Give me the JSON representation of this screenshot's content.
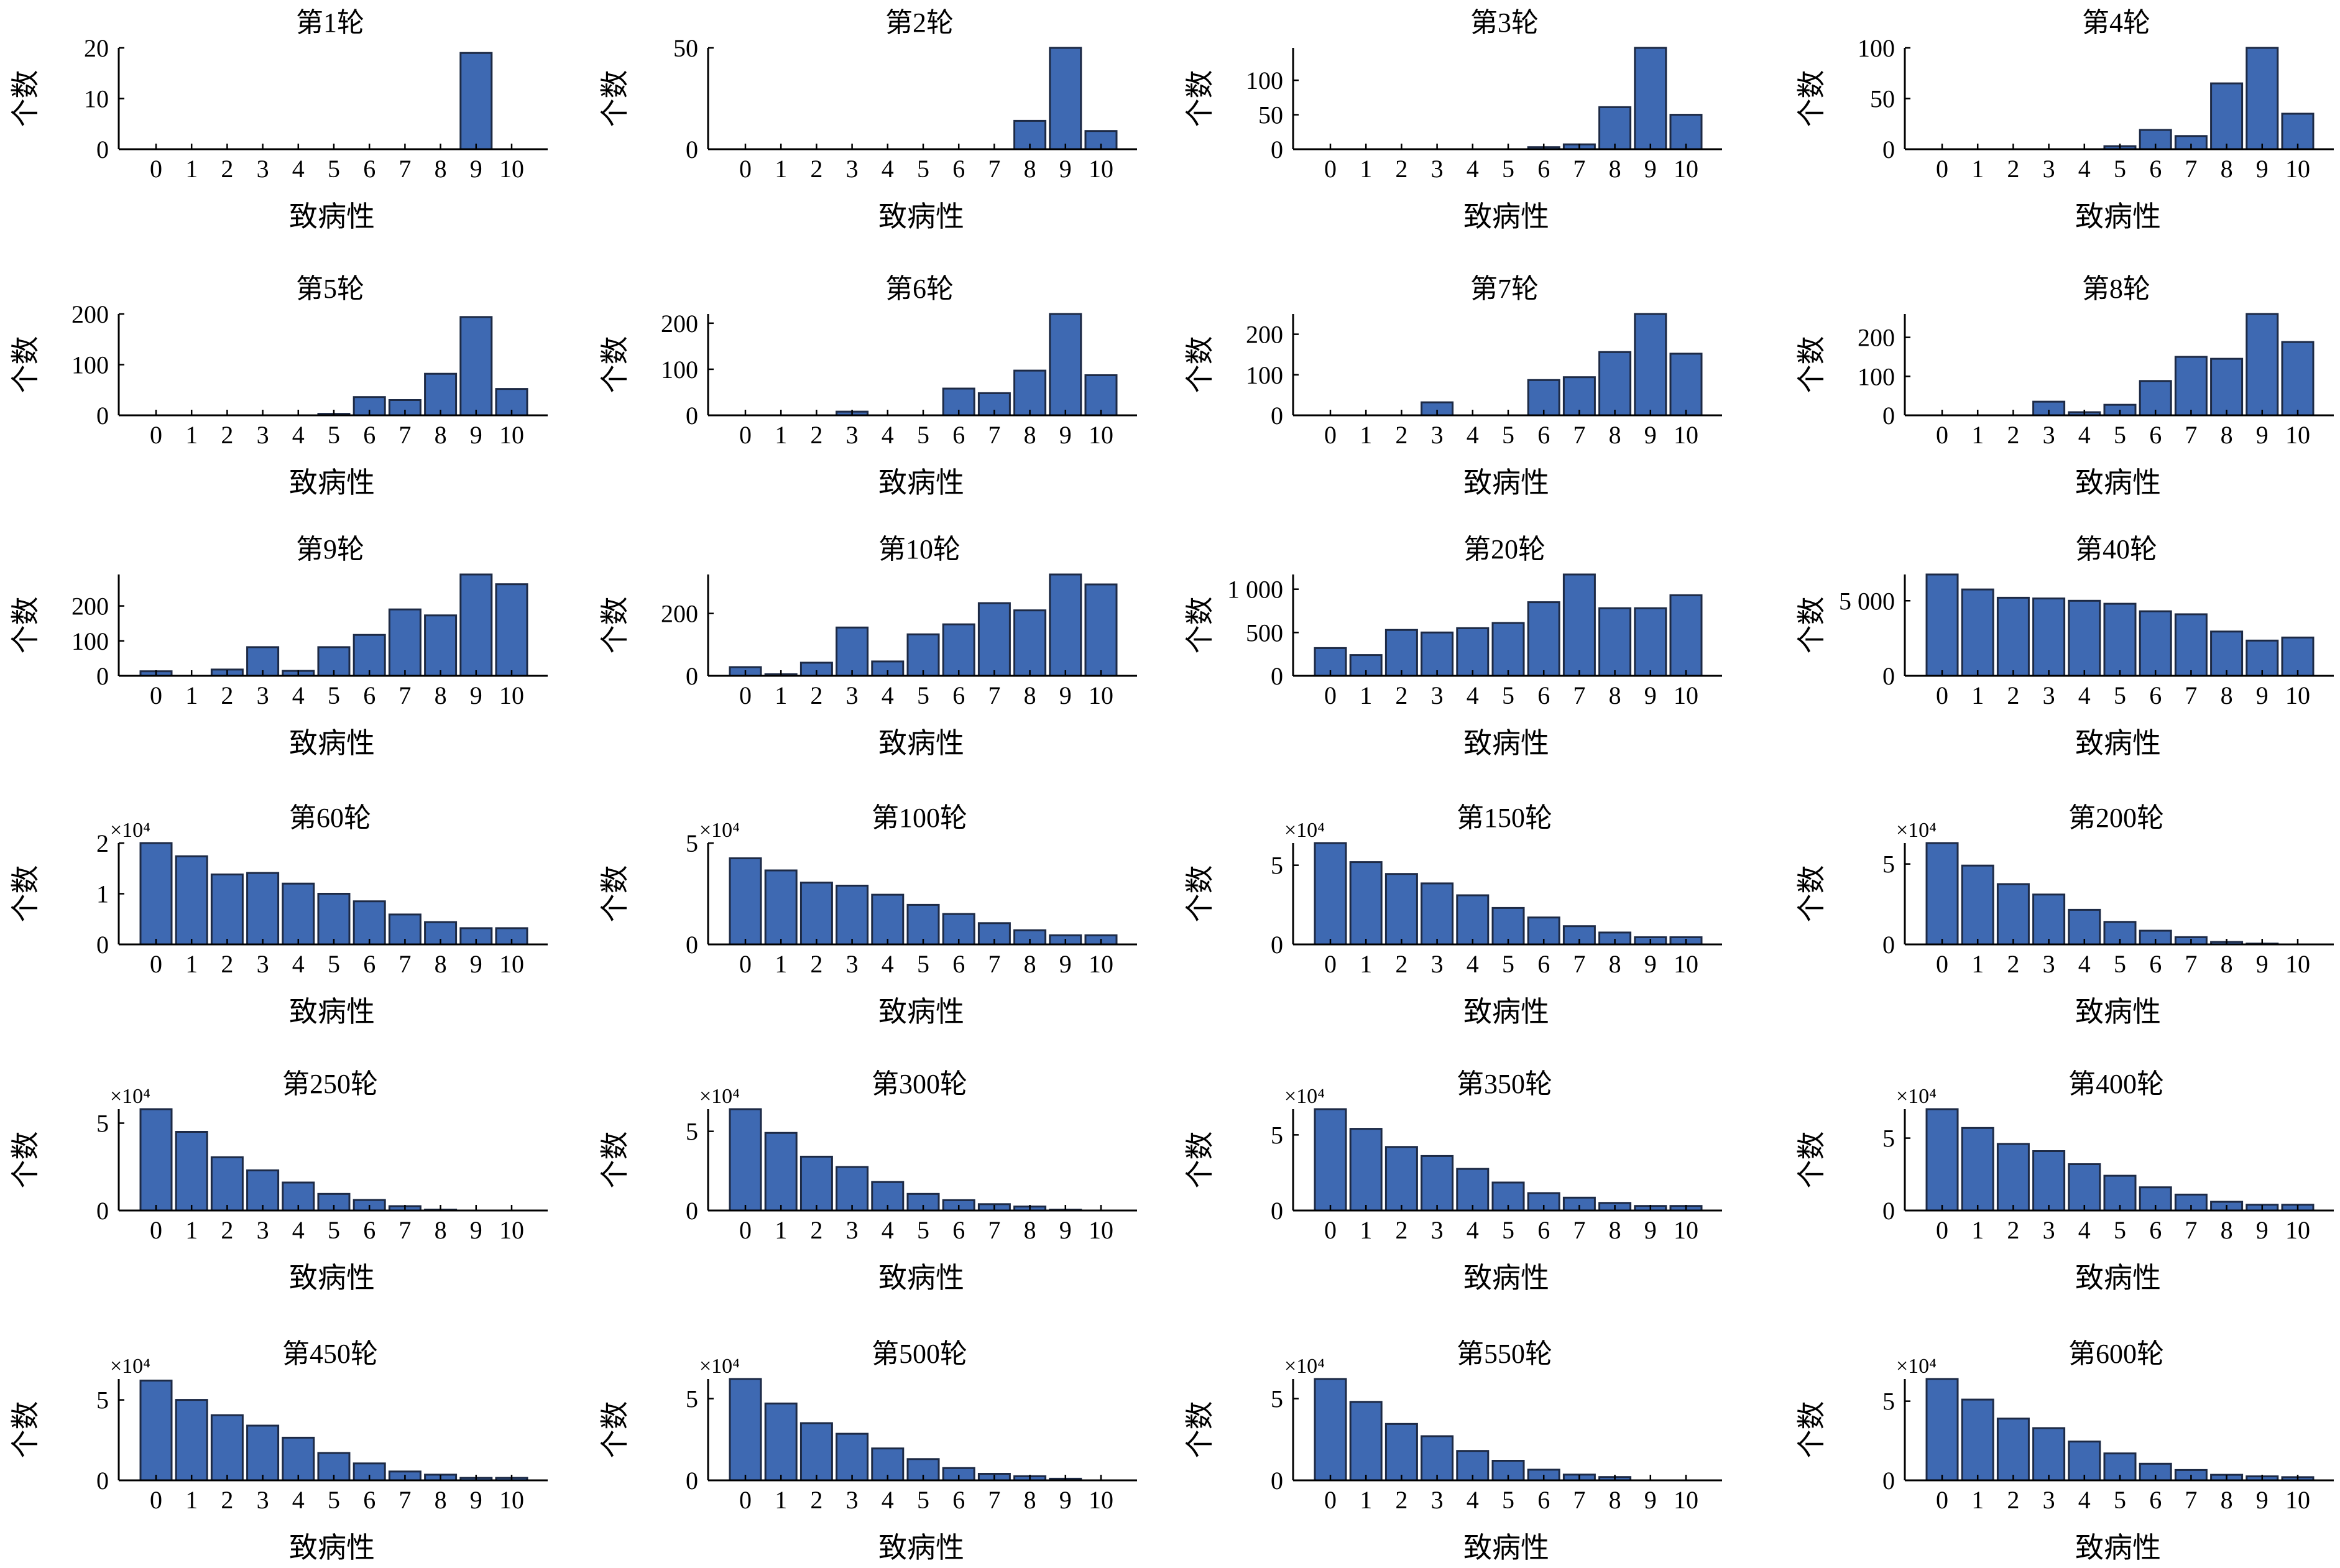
{
  "chart_data": [
    {
      "type": "bar",
      "title": "第1轮",
      "xlabel": "致病性",
      "ylabel": "个数",
      "categories": [
        "0",
        "1",
        "2",
        "3",
        "4",
        "5",
        "6",
        "7",
        "8",
        "9",
        "10"
      ],
      "values": [
        0,
        0,
        0,
        0,
        0,
        0,
        0,
        0,
        0,
        19,
        0
      ],
      "ylim": [
        0,
        20
      ],
      "yticks": [
        {
          "value": 0,
          "label": "0"
        },
        {
          "value": 10,
          "label": "10"
        },
        {
          "value": 20,
          "label": "20"
        }
      ]
    },
    {
      "type": "bar",
      "title": "第2轮",
      "xlabel": "致病性",
      "ylabel": "个数",
      "categories": [
        "0",
        "1",
        "2",
        "3",
        "4",
        "5",
        "6",
        "7",
        "8",
        "9",
        "10"
      ],
      "values": [
        0,
        0,
        0,
        0,
        0,
        0,
        0,
        0,
        14,
        50,
        9
      ],
      "ylim": [
        0,
        50
      ],
      "yticks": [
        {
          "value": 0,
          "label": "0"
        },
        {
          "value": 50,
          "label": "50"
        }
      ]
    },
    {
      "type": "bar",
      "title": "第3轮",
      "xlabel": "致病性",
      "ylabel": "个数",
      "categories": [
        "0",
        "1",
        "2",
        "3",
        "4",
        "5",
        "6",
        "7",
        "8",
        "9",
        "10"
      ],
      "values": [
        0,
        0,
        0,
        0,
        0,
        0,
        3,
        7,
        61,
        147,
        50
      ],
      "ylim": [
        0,
        147
      ],
      "yticks": [
        {
          "value": 0,
          "label": "0"
        },
        {
          "value": 50,
          "label": "50"
        },
        {
          "value": 100,
          "label": "100"
        }
      ]
    },
    {
      "type": "bar",
      "title": "第4轮",
      "xlabel": "致病性",
      "ylabel": "个数",
      "categories": [
        "0",
        "1",
        "2",
        "3",
        "4",
        "5",
        "6",
        "7",
        "8",
        "9",
        "10"
      ],
      "values": [
        0,
        0,
        0,
        0,
        0,
        3,
        19,
        13,
        65,
        100,
        35
      ],
      "ylim": [
        0,
        100
      ],
      "yticks": [
        {
          "value": 0,
          "label": "0"
        },
        {
          "value": 50,
          "label": "50"
        },
        {
          "value": 100,
          "label": "100"
        }
      ]
    },
    {
      "type": "bar",
      "title": "第5轮",
      "xlabel": "致病性",
      "ylabel": "个数",
      "categories": [
        "0",
        "1",
        "2",
        "3",
        "4",
        "5",
        "6",
        "7",
        "8",
        "9",
        "10"
      ],
      "values": [
        0,
        0,
        0,
        0,
        0,
        3,
        36,
        30,
        82,
        194,
        52
      ],
      "ylim": [
        0,
        200
      ],
      "yticks": [
        {
          "value": 0,
          "label": "0"
        },
        {
          "value": 100,
          "label": "100"
        },
        {
          "value": 200,
          "label": "200"
        }
      ]
    },
    {
      "type": "bar",
      "title": "第6轮",
      "xlabel": "致病性",
      "ylabel": "个数",
      "categories": [
        "0",
        "1",
        "2",
        "3",
        "4",
        "5",
        "6",
        "7",
        "8",
        "9",
        "10"
      ],
      "values": [
        0,
        0,
        0,
        8,
        0,
        0,
        58,
        48,
        97,
        220,
        87
      ],
      "ylim": [
        0,
        220
      ],
      "yticks": [
        {
          "value": 0,
          "label": "0"
        },
        {
          "value": 100,
          "label": "100"
        },
        {
          "value": 200,
          "label": "200"
        }
      ]
    },
    {
      "type": "bar",
      "title": "第7轮",
      "xlabel": "致病性",
      "ylabel": "个数",
      "categories": [
        "0",
        "1",
        "2",
        "3",
        "4",
        "5",
        "6",
        "7",
        "8",
        "9",
        "10"
      ],
      "values": [
        0,
        0,
        0,
        32,
        0,
        0,
        87,
        94,
        156,
        250,
        152
      ],
      "ylim": [
        0,
        250
      ],
      "yticks": [
        {
          "value": 0,
          "label": "0"
        },
        {
          "value": 100,
          "label": "100"
        },
        {
          "value": 200,
          "label": "200"
        }
      ]
    },
    {
      "type": "bar",
      "title": "第8轮",
      "xlabel": "致病性",
      "ylabel": "个数",
      "categories": [
        "0",
        "1",
        "2",
        "3",
        "4",
        "5",
        "6",
        "7",
        "8",
        "9",
        "10"
      ],
      "values": [
        0,
        0,
        0,
        35,
        8,
        27,
        88,
        150,
        145,
        260,
        188
      ],
      "ylim": [
        0,
        260
      ],
      "yticks": [
        {
          "value": 0,
          "label": "0"
        },
        {
          "value": 100,
          "label": "100"
        },
        {
          "value": 200,
          "label": "200"
        }
      ]
    },
    {
      "type": "bar",
      "title": "第9轮",
      "xlabel": "致病性",
      "ylabel": "个数",
      "categories": [
        "0",
        "1",
        "2",
        "3",
        "4",
        "5",
        "6",
        "7",
        "8",
        "9",
        "10"
      ],
      "values": [
        13,
        0,
        18,
        82,
        14,
        82,
        117,
        190,
        173,
        290,
        262
      ],
      "ylim": [
        0,
        290
      ],
      "yticks": [
        {
          "value": 0,
          "label": "0"
        },
        {
          "value": 100,
          "label": "100"
        },
        {
          "value": 200,
          "label": "200"
        }
      ]
    },
    {
      "type": "bar",
      "title": "第10轮",
      "xlabel": "致病性",
      "ylabel": "个数",
      "categories": [
        "0",
        "1",
        "2",
        "3",
        "4",
        "5",
        "6",
        "7",
        "8",
        "9",
        "10"
      ],
      "values": [
        28,
        5,
        42,
        155,
        46,
        133,
        165,
        233,
        210,
        325,
        293
      ],
      "ylim": [
        0,
        325
      ],
      "yticks": [
        {
          "value": 0,
          "label": "0"
        },
        {
          "value": 200,
          "label": "200"
        }
      ]
    },
    {
      "type": "bar",
      "title": "第20轮",
      "xlabel": "致病性",
      "ylabel": "个数",
      "categories": [
        "0",
        "1",
        "2",
        "3",
        "4",
        "5",
        "6",
        "7",
        "8",
        "9",
        "10"
      ],
      "values": [
        320,
        240,
        530,
        500,
        550,
        610,
        850,
        1170,
        780,
        780,
        930
      ],
      "ylim": [
        0,
        1170
      ],
      "yticks": [
        {
          "value": 0,
          "label": "0"
        },
        {
          "value": 500,
          "label": "500"
        },
        {
          "value": 1000,
          "label": "1 000"
        }
      ]
    },
    {
      "type": "bar",
      "title": "第40轮",
      "xlabel": "致病性",
      "ylabel": "个数",
      "categories": [
        "0",
        "1",
        "2",
        "3",
        "4",
        "5",
        "6",
        "7",
        "8",
        "9",
        "10"
      ],
      "values": [
        6750,
        5750,
        5200,
        5150,
        5000,
        4800,
        4300,
        4100,
        2950,
        2350,
        2550
      ],
      "ylim": [
        0,
        6750
      ],
      "yticks": [
        {
          "value": 0,
          "label": "0"
        },
        {
          "value": 5000,
          "label": "5 000"
        }
      ]
    },
    {
      "type": "bar",
      "title": "第60轮",
      "xlabel": "致病性",
      "ylabel": "个数",
      "y_multiplier": "×10⁴",
      "categories": [
        "0",
        "1",
        "2",
        "3",
        "4",
        "5",
        "6",
        "7",
        "8",
        "9",
        "10"
      ],
      "values": [
        2.0,
        1.74,
        1.38,
        1.41,
        1.2,
        1.0,
        0.85,
        0.59,
        0.44,
        0.32,
        0.32
      ],
      "ylim": [
        0,
        2
      ],
      "yticks": [
        {
          "value": 0,
          "label": "0"
        },
        {
          "value": 1,
          "label": "1"
        },
        {
          "value": 2,
          "label": "2"
        }
      ]
    },
    {
      "type": "bar",
      "title": "第100轮",
      "xlabel": "致病性",
      "ylabel": "个数",
      "y_multiplier": "×10⁴",
      "categories": [
        "0",
        "1",
        "2",
        "3",
        "4",
        "5",
        "6",
        "7",
        "8",
        "9",
        "10"
      ],
      "values": [
        4.25,
        3.65,
        3.05,
        2.9,
        2.45,
        1.95,
        1.5,
        1.05,
        0.7,
        0.45,
        0.45
      ],
      "ylim": [
        0,
        5
      ],
      "yticks": [
        {
          "value": 0,
          "label": "0"
        },
        {
          "value": 5,
          "label": "5"
        }
      ]
    },
    {
      "type": "bar",
      "title": "第150轮",
      "xlabel": "致病性",
      "ylabel": "个数",
      "y_multiplier": "×10⁴",
      "categories": [
        "0",
        "1",
        "2",
        "3",
        "4",
        "5",
        "6",
        "7",
        "8",
        "9",
        "10"
      ],
      "values": [
        6.4,
        5.2,
        4.45,
        3.85,
        3.1,
        2.3,
        1.7,
        1.15,
        0.75,
        0.45,
        0.45
      ],
      "ylim": [
        0,
        6.4
      ],
      "yticks": [
        {
          "value": 0,
          "label": "0"
        },
        {
          "value": 5,
          "label": "5"
        }
      ]
    },
    {
      "type": "bar",
      "title": "第200轮",
      "xlabel": "致病性",
      "ylabel": "个数",
      "y_multiplier": "×10⁴",
      "categories": [
        "0",
        "1",
        "2",
        "3",
        "4",
        "5",
        "6",
        "7",
        "8",
        "9",
        "10"
      ],
      "values": [
        6.3,
        4.9,
        3.75,
        3.1,
        2.15,
        1.4,
        0.85,
        0.45,
        0.15,
        0.05,
        0
      ],
      "ylim": [
        0,
        6.3
      ],
      "yticks": [
        {
          "value": 0,
          "label": "0"
        },
        {
          "value": 5,
          "label": "5"
        }
      ]
    },
    {
      "type": "bar",
      "title": "第250轮",
      "xlabel": "致病性",
      "ylabel": "个数",
      "y_multiplier": "×10⁴",
      "categories": [
        "0",
        "1",
        "2",
        "3",
        "4",
        "5",
        "6",
        "7",
        "8",
        "9",
        "10"
      ],
      "values": [
        5.8,
        4.5,
        3.05,
        2.3,
        1.6,
        0.95,
        0.6,
        0.25,
        0.05,
        0,
        0
      ],
      "ylim": [
        0,
        5.8
      ],
      "yticks": [
        {
          "value": 0,
          "label": "0"
        },
        {
          "value": 5,
          "label": "5"
        }
      ]
    },
    {
      "type": "bar",
      "title": "第300轮",
      "xlabel": "致病性",
      "ylabel": "个数",
      "y_multiplier": "×10⁴",
      "categories": [
        "0",
        "1",
        "2",
        "3",
        "4",
        "5",
        "6",
        "7",
        "8",
        "9",
        "10"
      ],
      "values": [
        6.4,
        4.9,
        3.4,
        2.75,
        1.8,
        1.05,
        0.65,
        0.4,
        0.25,
        0.05,
        0
      ],
      "ylim": [
        0,
        6.4
      ],
      "yticks": [
        {
          "value": 0,
          "label": "0"
        },
        {
          "value": 5,
          "label": "5"
        }
      ]
    },
    {
      "type": "bar",
      "title": "第350轮",
      "xlabel": "致病性",
      "ylabel": "个数",
      "y_multiplier": "×10⁴",
      "categories": [
        "0",
        "1",
        "2",
        "3",
        "4",
        "5",
        "6",
        "7",
        "8",
        "9",
        "10"
      ],
      "values": [
        6.7,
        5.4,
        4.2,
        3.6,
        2.75,
        1.85,
        1.15,
        0.85,
        0.5,
        0.3,
        0.3
      ],
      "ylim": [
        0,
        6.7
      ],
      "yticks": [
        {
          "value": 0,
          "label": "0"
        },
        {
          "value": 5,
          "label": "5"
        }
      ]
    },
    {
      "type": "bar",
      "title": "第400轮",
      "xlabel": "致病性",
      "ylabel": "个数",
      "y_multiplier": "×10⁴",
      "categories": [
        "0",
        "1",
        "2",
        "3",
        "4",
        "5",
        "6",
        "7",
        "8",
        "9",
        "10"
      ],
      "values": [
        7.0,
        5.7,
        4.6,
        4.1,
        3.2,
        2.4,
        1.6,
        1.1,
        0.6,
        0.4,
        0.4
      ],
      "ylim": [
        0,
        7.0
      ],
      "yticks": [
        {
          "value": 0,
          "label": "0"
        },
        {
          "value": 5,
          "label": "5"
        }
      ]
    },
    {
      "type": "bar",
      "title": "第450轮",
      "xlabel": "致病性",
      "ylabel": "个数",
      "y_multiplier": "×10⁴",
      "categories": [
        "0",
        "1",
        "2",
        "3",
        "4",
        "5",
        "6",
        "7",
        "8",
        "9",
        "10"
      ],
      "values": [
        6.2,
        5.0,
        4.05,
        3.4,
        2.65,
        1.7,
        1.05,
        0.55,
        0.35,
        0.15,
        0.15
      ],
      "ylim": [
        0,
        6.3
      ],
      "yticks": [
        {
          "value": 0,
          "label": "0"
        },
        {
          "value": 5,
          "label": "5"
        }
      ]
    },
    {
      "type": "bar",
      "title": "第500轮",
      "xlabel": "致病性",
      "ylabel": "个数",
      "y_multiplier": "×10⁴",
      "categories": [
        "0",
        "1",
        "2",
        "3",
        "4",
        "5",
        "6",
        "7",
        "8",
        "9",
        "10"
      ],
      "values": [
        6.2,
        4.7,
        3.5,
        2.85,
        1.95,
        1.3,
        0.75,
        0.4,
        0.25,
        0.1,
        0
      ],
      "ylim": [
        0,
        6.2
      ],
      "yticks": [
        {
          "value": 0,
          "label": "0"
        },
        {
          "value": 5,
          "label": "5"
        }
      ]
    },
    {
      "type": "bar",
      "title": "第550轮",
      "xlabel": "致病性",
      "ylabel": "个数",
      "y_multiplier": "×10⁴",
      "categories": [
        "0",
        "1",
        "2",
        "3",
        "4",
        "5",
        "6",
        "7",
        "8",
        "9",
        "10"
      ],
      "values": [
        6.2,
        4.8,
        3.45,
        2.7,
        1.8,
        1.2,
        0.65,
        0.35,
        0.2,
        0,
        0
      ],
      "ylim": [
        0,
        6.2
      ],
      "yticks": [
        {
          "value": 0,
          "label": "0"
        },
        {
          "value": 5,
          "label": "5"
        }
      ]
    },
    {
      "type": "bar",
      "title": "第600轮",
      "xlabel": "致病性",
      "ylabel": "个数",
      "y_multiplier": "×10⁴",
      "categories": [
        "0",
        "1",
        "2",
        "3",
        "4",
        "5",
        "6",
        "7",
        "8",
        "9",
        "10"
      ],
      "values": [
        6.4,
        5.1,
        3.9,
        3.3,
        2.45,
        1.7,
        1.05,
        0.65,
        0.35,
        0.25,
        0.2
      ],
      "ylim": [
        0,
        6.4
      ],
      "yticks": [
        {
          "value": 0,
          "label": "0"
        },
        {
          "value": 5,
          "label": "5"
        }
      ]
    }
  ]
}
